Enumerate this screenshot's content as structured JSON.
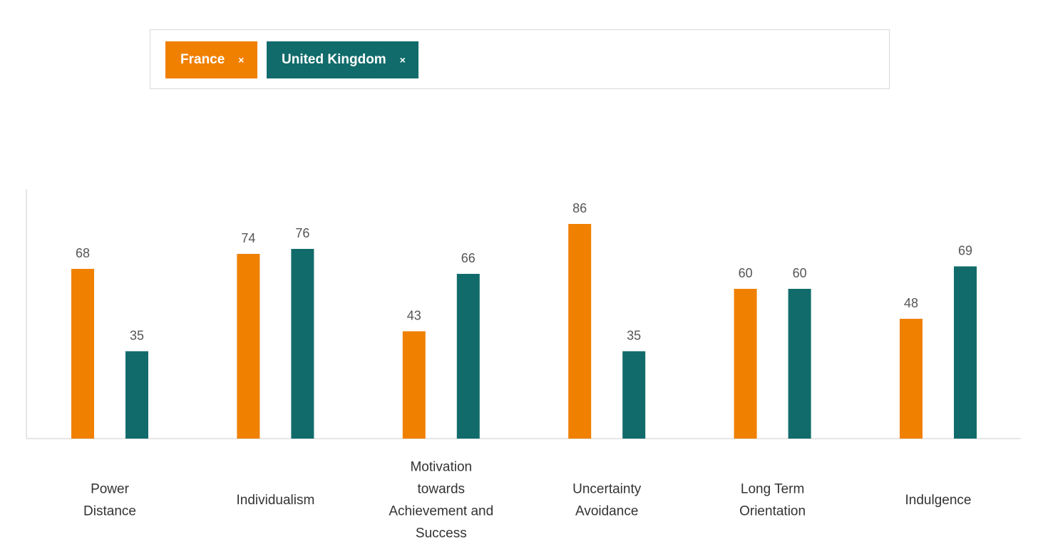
{
  "selector": {
    "chips": [
      {
        "label": "France",
        "close": "×",
        "color": "#f08000"
      },
      {
        "label": "United Kingdom",
        "close": "×",
        "color": "#126b6b"
      }
    ]
  },
  "chart_data": {
    "type": "bar",
    "title": "",
    "xlabel": "",
    "ylabel": "",
    "ylim": [
      0,
      100
    ],
    "categories": [
      [
        "Power",
        "Distance"
      ],
      [
        "Individualism"
      ],
      [
        "Motivation",
        "towards",
        "Achievement and",
        "Success"
      ],
      [
        "Uncertainty",
        "Avoidance"
      ],
      [
        "Long Term",
        "Orientation"
      ],
      [
        "Indulgence"
      ]
    ],
    "series": [
      {
        "name": "France",
        "color": "#f08000",
        "values": [
          68,
          74,
          43,
          86,
          60,
          48
        ]
      },
      {
        "name": "United Kingdom",
        "color": "#126b6b",
        "values": [
          35,
          76,
          66,
          35,
          60,
          69
        ]
      }
    ],
    "axis_color": "#dddddd"
  }
}
